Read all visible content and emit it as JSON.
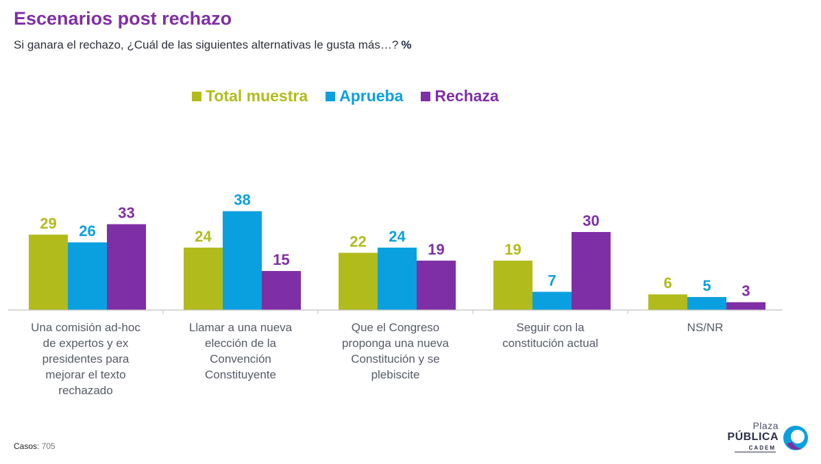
{
  "title": "Escenarios post rechazo",
  "subtitle": "Si ganara el rechazo, ¿Cuál de las siguientes alternativas le gusta más…?",
  "unit": "%",
  "footer": {
    "label": "Casos",
    "value": "705"
  },
  "logo": {
    "line1": "Plaza",
    "line2": "PÚBLICA",
    "line3": "CADEM"
  },
  "colors": {
    "title": "#7f2fa5",
    "total": "#b2bb1c",
    "aprueba": "#0aa0e0",
    "rechaza": "#7f2fa5"
  },
  "chart_data": {
    "type": "bar",
    "categories": [
      [
        "Una comisión ad-hoc",
        "de expertos y ex",
        "presidentes para",
        "mejorar el texto",
        "rechazado"
      ],
      [
        "Llamar a una nueva",
        "elección de la",
        "Convención",
        "Constituyente"
      ],
      [
        "Que el Congreso",
        "proponga una nueva",
        "Constitución y se",
        "plebiscite"
      ],
      [
        "Seguir con la",
        "constitución actual"
      ],
      [
        "NS/NR"
      ]
    ],
    "series": [
      {
        "name": "Total muestra",
        "color": "#b2bb1c",
        "values": [
          29,
          24,
          22,
          19,
          6
        ]
      },
      {
        "name": "Aprueba",
        "color": "#0aa0e0",
        "values": [
          26,
          38,
          24,
          7,
          5
        ]
      },
      {
        "name": "Rechaza",
        "color": "#7f2fa5",
        "values": [
          33,
          15,
          19,
          30,
          3
        ]
      }
    ],
    "legend_position": "top",
    "ylim": [
      0,
      38
    ],
    "grid": false
  }
}
